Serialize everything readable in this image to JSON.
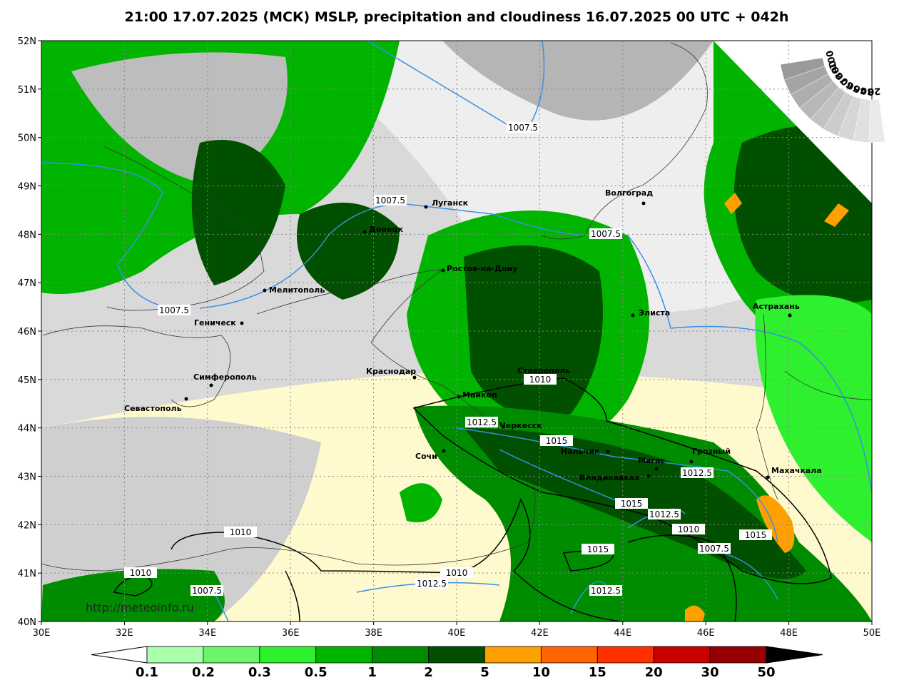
{
  "title": "21:00 17.07.2025 (МСК) MSLP, precipitation and cloudiness 16.07.2025 00 UTC + 042h",
  "lat_labels": [
    "52N",
    "51N",
    "50N",
    "49N",
    "48N",
    "47N",
    "46N",
    "45N",
    "44N",
    "43N",
    "42N",
    "41N",
    "40N"
  ],
  "lon_labels": [
    "30E",
    "32E",
    "34E",
    "36E",
    "38E",
    "40E",
    "42E",
    "44E",
    "46E",
    "48E",
    "50E"
  ],
  "cities": [
    "Луганск",
    "Донецк",
    "Волгоград",
    "Ростов-на-Дону",
    "Мелитополь",
    "Геническ",
    "Элиста",
    "Астрахань",
    "Симферополь",
    "Севастополь",
    "Краснодар",
    "Ставрополь",
    "Майкоп",
    "Черкесск",
    "Сочи",
    "Нальчик",
    "Магас",
    "Грозный",
    "Владикавказ",
    "Махачкала"
  ],
  "isobar_labels": [
    "1007.5",
    "1007.5",
    "1007.5",
    "1007.5",
    "1010",
    "1012.5",
    "1015",
    "1012.5",
    "1015",
    "1012.5",
    "1010",
    "1015",
    "1007.5",
    "1015",
    "1010",
    "1010",
    "1010",
    "1012.5",
    "1007.5",
    "1012.5"
  ],
  "url": "http://meteoinfo.ru",
  "cloud_legend": {
    "labels": [
      "100",
      "90",
      "80",
      "70",
      "60",
      "50",
      "40",
      "30",
      "20"
    ],
    "colors": [
      "#9a9a9a",
      "#a4a4a4",
      "#aeaeae",
      "#b8b8b8",
      "#c2c2c2",
      "#cccccc",
      "#d6d6d6",
      "#e0e0e0",
      "#eaeaea"
    ]
  },
  "precip_legend": {
    "labels": [
      "0.1",
      "0.2",
      "0.3",
      "0.5",
      "1",
      "2",
      "5",
      "10",
      "15",
      "20",
      "30",
      "50"
    ],
    "colors": [
      "#aaffaa",
      "#6bf56b",
      "#2ef02e",
      "#00b400",
      "#008c00",
      "#005000",
      "#ffa000",
      "#ff6400",
      "#ff3000",
      "#c80000",
      "#960000"
    ]
  }
}
